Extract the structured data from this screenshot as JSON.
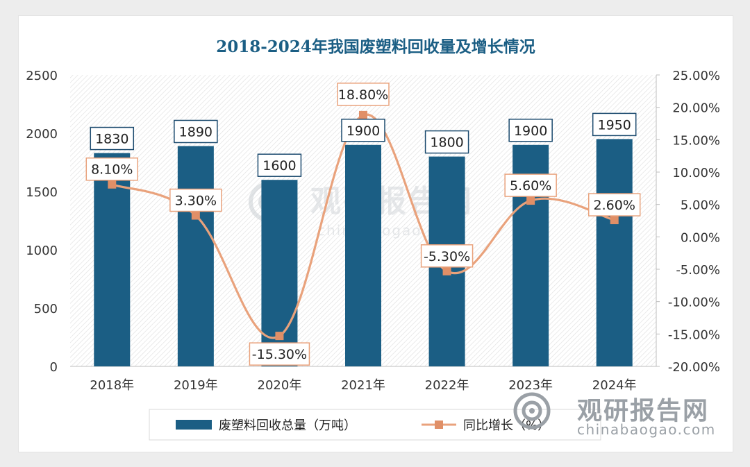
{
  "chart_data": {
    "type": "bar",
    "title": "2018-2024年我国废塑料回收量及增长情况",
    "categories": [
      "2018年",
      "2019年",
      "2020年",
      "2021年",
      "2022年",
      "2023年",
      "2024年"
    ],
    "series": [
      {
        "name": "废塑料回收总量（万吨）",
        "type": "bar",
        "axis": "left",
        "color": "#1b5e84",
        "values": [
          1830,
          1890,
          1600,
          1900,
          1800,
          1900,
          1950
        ],
        "labels": [
          "1830",
          "1890",
          "1600",
          "1900",
          "1800",
          "1900",
          "1950"
        ]
      },
      {
        "name": "同比增长（%）",
        "type": "line",
        "axis": "right",
        "color": "#e9a27c",
        "values": [
          8.1,
          3.3,
          -15.3,
          18.8,
          -5.3,
          5.6,
          2.6
        ],
        "labels": [
          "8.10%",
          "3.30%",
          "-15.30%",
          "18.80%",
          "-5.30%",
          "5.60%",
          "2.60%"
        ]
      }
    ],
    "y_left": {
      "lim": [
        0,
        2500
      ],
      "ticks": [
        "0",
        "500",
        "1000",
        "1500",
        "2000",
        "2500"
      ]
    },
    "y_right": {
      "lim": [
        -20,
        25
      ],
      "ticks": [
        "-20.00%",
        "-15.00%",
        "-10.00%",
        "-5.00%",
        "0.00%",
        "5.00%",
        "10.00%",
        "15.00%",
        "20.00%",
        "25.00%"
      ]
    },
    "grid": false,
    "legend_position": "bottom"
  },
  "watermark": {
    "text_cn": "观研报告网",
    "text_en": "chinabaogao.com"
  },
  "colors": {
    "title": "#1b5e84",
    "bar": "#1b5e84",
    "line": "#e9a27c",
    "marker": "#e08f67",
    "label_border_bar": "#1b4a6e",
    "label_border_line": "#e9a27c"
  }
}
